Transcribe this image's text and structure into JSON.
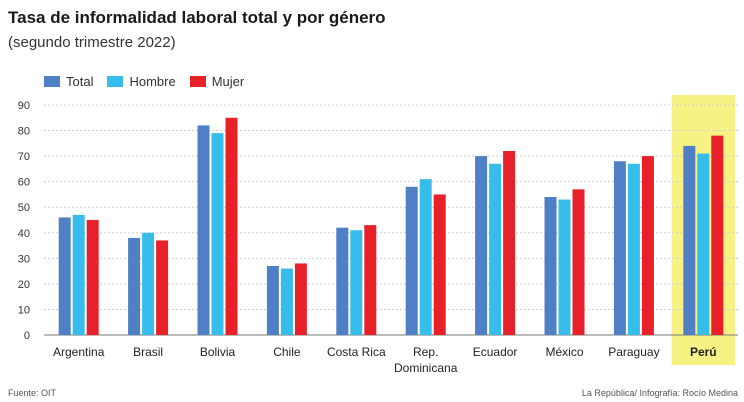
{
  "header": {
    "title": "Tasa de informalidad laboral total y por género",
    "subtitle": "(segundo trimestre 2022)"
  },
  "footer": {
    "source": "Fuente: OIT",
    "credit": "La República/ Infografía: Rocío Medina"
  },
  "colors": {
    "total": "#4f80c6",
    "hombre": "#37bdeb",
    "mujer": "#e8202a",
    "highlight": "#f6ec5a",
    "grid": "#d0d0d0"
  },
  "chart_data": {
    "type": "bar",
    "title": "Tasa de informalidad laboral total y por género",
    "subtitle": "(segundo trimestre 2022)",
    "categories": [
      "Argentina",
      "Brasil",
      "Bolivia",
      "Chile",
      "Costa Rica",
      "Rep. Dominicana",
      "Ecuador",
      "México",
      "Paraguay",
      "Perú"
    ],
    "category_lines": [
      [
        "Argentina"
      ],
      [
        "Brasil"
      ],
      [
        "Bolivia"
      ],
      [
        "Chile"
      ],
      [
        "Costa Rica"
      ],
      [
        "Rep.",
        "Dominicana"
      ],
      [
        "Ecuador"
      ],
      [
        "México"
      ],
      [
        "Paraguay"
      ],
      [
        "Perú"
      ]
    ],
    "highlighted_category": "Perú",
    "series": [
      {
        "name": "Total",
        "color_key": "total",
        "values": [
          46,
          38,
          82,
          27,
          42,
          58,
          70,
          54,
          68,
          74
        ]
      },
      {
        "name": "Hombre",
        "color_key": "hombre",
        "values": [
          47,
          40,
          79,
          26,
          41,
          61,
          67,
          53,
          67,
          71
        ]
      },
      {
        "name": "Mujer",
        "color_key": "mujer",
        "values": [
          45,
          37,
          85,
          28,
          43,
          55,
          72,
          57,
          70,
          78
        ]
      }
    ],
    "ylim": [
      0,
      90
    ],
    "yticks": [
      0,
      10,
      20,
      30,
      40,
      50,
      60,
      70,
      80,
      90
    ],
    "grid": true,
    "legend_position": "top-left"
  }
}
